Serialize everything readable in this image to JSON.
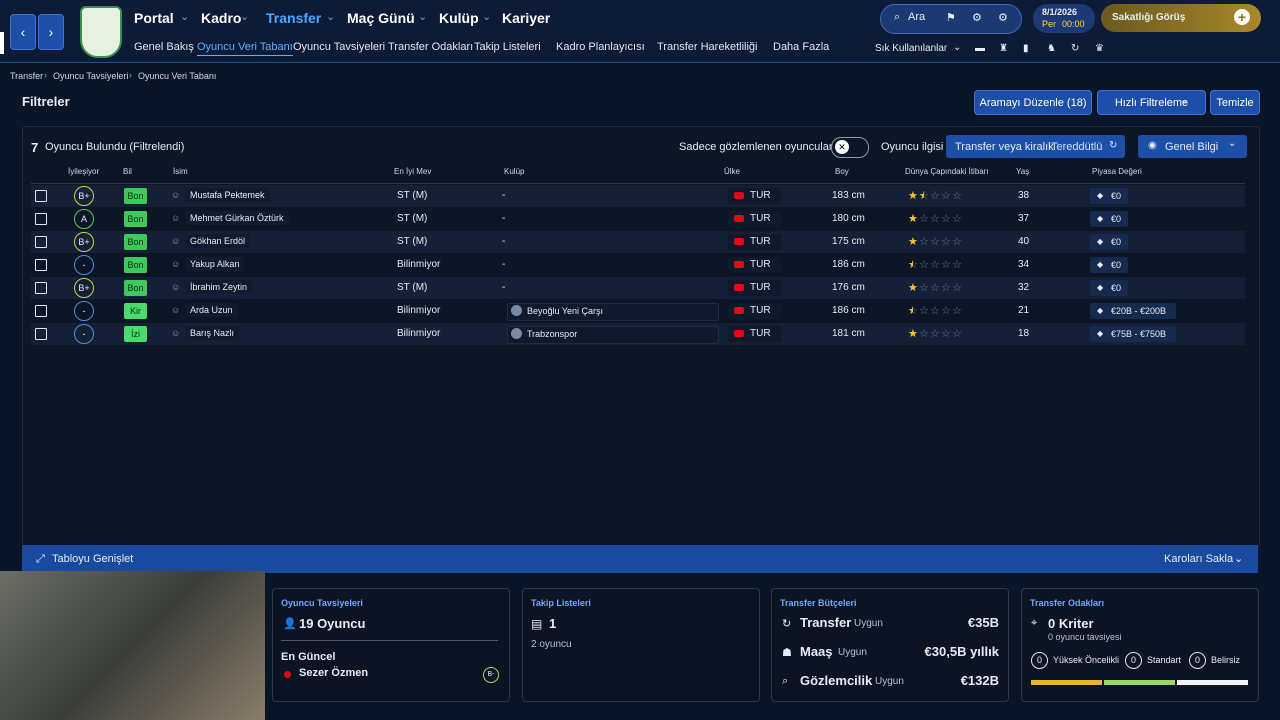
{
  "nav": {
    "menu": [
      "Portal",
      "Kadro",
      "Transfer",
      "Maç Günü",
      "Kulüp",
      "Kariyer"
    ],
    "submenu": [
      "Genel Bakış",
      "Oyuncu Veri Tabanı",
      "Oyuncu Tavsiyeleri",
      "Transfer Odakları",
      "Takip Listeleri",
      "Kadro Planlayıcısı",
      "Transfer Hareketliliği",
      "Daha Fazla"
    ],
    "search": "Ara",
    "date": "8/1/2026",
    "day": "Per",
    "time": "00:00",
    "next": "Sakatlığı Görüş",
    "shortcuts": "Sık Kullanılanlar"
  },
  "breadcrumb": [
    "Transfer",
    "Oyuncu Tavsiyeleri",
    "Oyuncu Veri Tabanı"
  ],
  "filters": {
    "title": "Filtreler",
    "buttons": [
      "Aramayı Düzenle (18)",
      "Hızlı Filtreleme",
      "Temizle"
    ]
  },
  "table": {
    "count": "7",
    "count_label": "Oyuncu Bulundu (Filtrelendi)",
    "toggle_label": "Sadece gözlemlenen oyuncular",
    "interest_label": "Oyuncu ilgisi",
    "interest_value": "Transfer veya kiralık",
    "interest_state": "Tereddütlü",
    "view": "Genel Bilgi",
    "columns": [
      "İyileşiyor",
      "Bil",
      "İsim",
      "En İyi Mev",
      "Kulüp",
      "Ülke",
      "Boy",
      "Dünya Çapındaki İtibarı",
      "Yaş",
      "Piyasa Değeri"
    ],
    "rows": [
      {
        "grade": "B+",
        "knowledge": "Bon",
        "name": "Mustafa Pektemek",
        "position": "ST (M)",
        "club": "-",
        "nation": "TUR",
        "height": "183 cm",
        "reputation": 1.5,
        "age": 38,
        "value": "€0"
      },
      {
        "grade": "A",
        "knowledge": "Bon",
        "name": "Mehmet Gürkan Öztürk",
        "position": "ST (M)",
        "club": "-",
        "nation": "TUR",
        "height": "180 cm",
        "reputation": 1,
        "age": 37,
        "value": "€0"
      },
      {
        "grade": "B+",
        "knowledge": "Bon",
        "name": "Gökhan Erdöl",
        "position": "ST (M)",
        "club": "-",
        "nation": "TUR",
        "height": "175 cm",
        "reputation": 1,
        "age": 40,
        "value": "€0"
      },
      {
        "grade": "-",
        "knowledge": "Bon",
        "name": "Yakup Alkan",
        "position": "Bilinmiyor",
        "club": "-",
        "nation": "TUR",
        "height": "186 cm",
        "reputation": 0.5,
        "age": 34,
        "value": "€0"
      },
      {
        "grade": "B+",
        "knowledge": "Bon",
        "name": "İbrahim Zeytin",
        "position": "ST (M)",
        "club": "-",
        "nation": "TUR",
        "height": "176 cm",
        "reputation": 1,
        "age": 32,
        "value": "€0"
      },
      {
        "grade": "-",
        "knowledge": "Kir",
        "name": "Arda Uzun",
        "position": "Bilinmiyor",
        "club": "Beyoğlu Yeni Çarşı",
        "nation": "TUR",
        "height": "186 cm",
        "reputation": 0.5,
        "age": 21,
        "value": "€20B - €200B"
      },
      {
        "grade": "-",
        "knowledge": "İzi",
        "name": "Barış Nazlı",
        "position": "Bilinmiyor",
        "club": "Trabzonspor",
        "nation": "TUR",
        "height": "181 cm",
        "reputation": 1,
        "age": 18,
        "value": "€75B - €750B"
      }
    ],
    "expand": "Tabloyu Genişlet",
    "hide_tiles": "Karoları Sakla"
  },
  "cards": {
    "recommendations": {
      "title": "Oyuncu Tavsiyeleri",
      "count": "19 Oyuncu",
      "latest_label": "En Güncel",
      "latest_name": "Sezer Özmen",
      "latest_grade": "B-"
    },
    "shortlists": {
      "title": "Takip Listeleri",
      "count": "1",
      "sub": "2 oyuncu"
    },
    "budgets": {
      "title": "Transfer Bütçeleri",
      "rows": [
        {
          "label": "Transfer",
          "status": "Uygun",
          "value": "€35B"
        },
        {
          "label": "Maaş",
          "status": "Uygun",
          "value": "€30,5B yıllık"
        },
        {
          "label": "Gözlemcilik",
          "status": "Uygun",
          "value": "€132B"
        }
      ]
    },
    "focus": {
      "title": "Transfer Odakları",
      "count": "0 Kriter",
      "sub": "0 oyuncu tavsiyesi",
      "priorities": [
        {
          "count": "0",
          "label": "Yüksek Öncelikli"
        },
        {
          "count": "0",
          "label": "Standart"
        },
        {
          "count": "0",
          "label": "Belirsiz"
        }
      ]
    }
  }
}
